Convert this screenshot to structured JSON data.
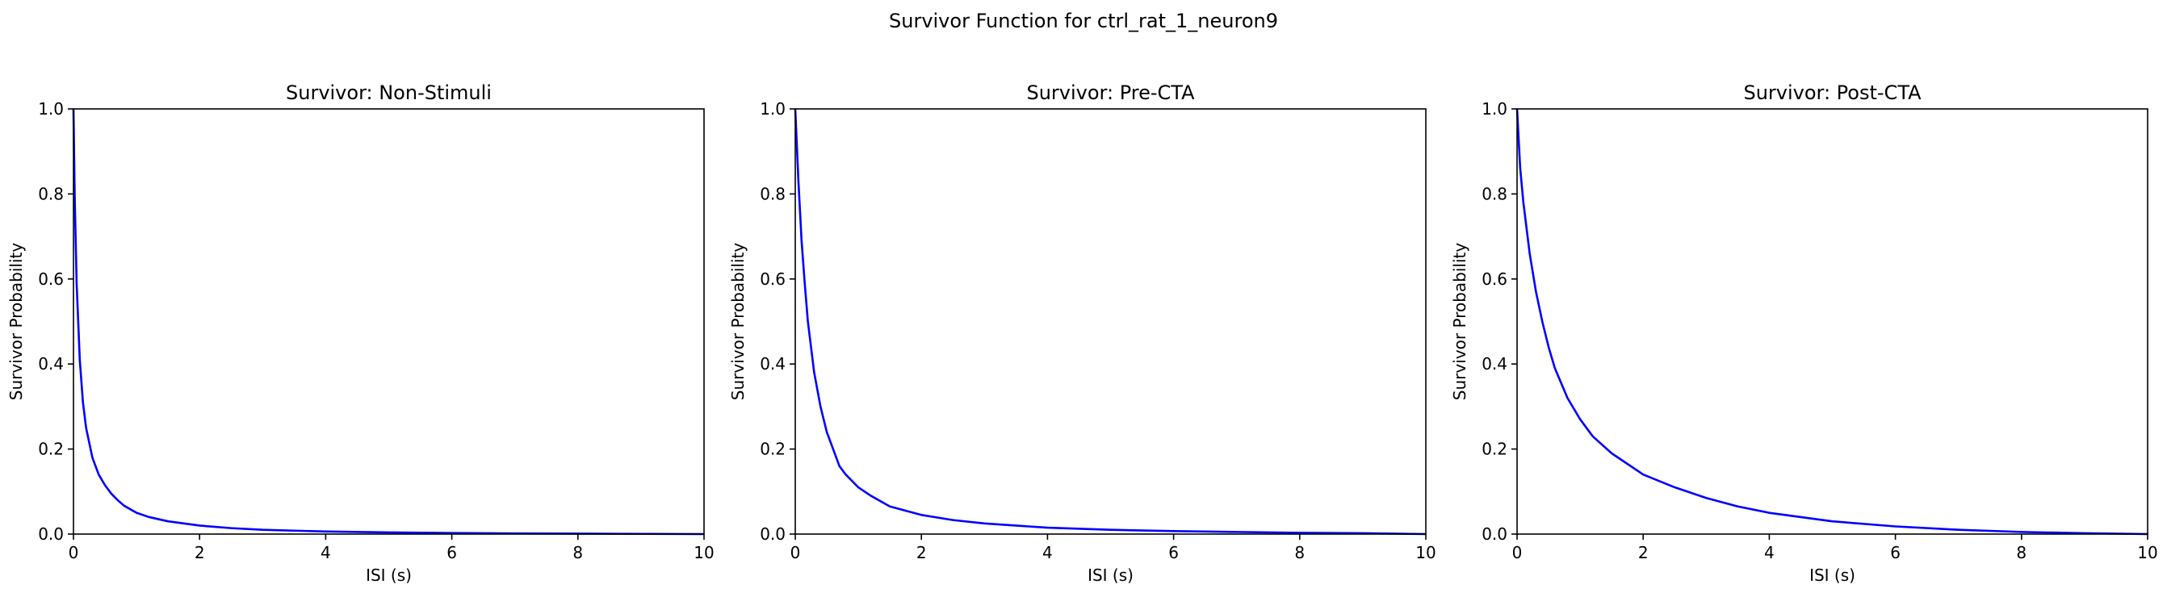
{
  "figure": {
    "suptitle": "Survivor Function for ctrl_rat_1_neuron9"
  },
  "colors": {
    "line": "#0000ff",
    "axes": "#000000",
    "background": "#ffffff"
  },
  "chart_data": [
    {
      "type": "line",
      "title": "Survivor: Non-Stimuli",
      "xlabel": "ISI (s)",
      "ylabel": "Survivor Probability",
      "xlim": [
        0,
        10
      ],
      "ylim": [
        0,
        1
      ],
      "xticks": [
        "0",
        "2",
        "4",
        "6",
        "8",
        "10"
      ],
      "yticks": [
        "0.0",
        "0.2",
        "0.4",
        "0.6",
        "0.8",
        "1.0"
      ],
      "grid": false,
      "series": [
        {
          "color": "#0000ff",
          "x": [
            0,
            0.02,
            0.05,
            0.1,
            0.15,
            0.2,
            0.3,
            0.4,
            0.5,
            0.6,
            0.7,
            0.8,
            1.0,
            1.2,
            1.5,
            2,
            2.5,
            3,
            4,
            5,
            6,
            7,
            8,
            10
          ],
          "y": [
            1.0,
            0.79,
            0.59,
            0.41,
            0.31,
            0.25,
            0.18,
            0.14,
            0.115,
            0.095,
            0.08,
            0.067,
            0.05,
            0.04,
            0.03,
            0.02,
            0.014,
            0.01,
            0.006,
            0.004,
            0.0025,
            0.0015,
            0.001,
            0.0
          ]
        }
      ]
    },
    {
      "type": "line",
      "title": "Survivor: Pre-CTA",
      "xlabel": "ISI (s)",
      "ylabel": "Survivor Probability",
      "xlim": [
        0,
        10
      ],
      "ylim": [
        0,
        1
      ],
      "xticks": [
        "0",
        "2",
        "4",
        "6",
        "8",
        "10"
      ],
      "yticks": [
        "0.0",
        "0.2",
        "0.4",
        "0.6",
        "0.8",
        "1.0"
      ],
      "grid": false,
      "series": [
        {
          "color": "#0000ff",
          "x": [
            0,
            0.05,
            0.1,
            0.15,
            0.2,
            0.3,
            0.4,
            0.5,
            0.6,
            0.7,
            0.8,
            1.0,
            1.2,
            1.5,
            2,
            2.5,
            3,
            4,
            5,
            6,
            7,
            8,
            9,
            10
          ],
          "y": [
            1.0,
            0.83,
            0.69,
            0.59,
            0.5,
            0.38,
            0.3,
            0.24,
            0.2,
            0.16,
            0.14,
            0.11,
            0.09,
            0.065,
            0.045,
            0.033,
            0.025,
            0.015,
            0.01,
            0.007,
            0.005,
            0.003,
            0.002,
            0.0
          ]
        }
      ]
    },
    {
      "type": "line",
      "title": "Survivor: Post-CTA",
      "xlabel": "ISI (s)",
      "ylabel": "Survivor Probability",
      "xlim": [
        0,
        10
      ],
      "ylim": [
        0,
        1
      ],
      "xticks": [
        "0",
        "2",
        "4",
        "6",
        "8",
        "10"
      ],
      "yticks": [
        "0.0",
        "0.2",
        "0.4",
        "0.6",
        "0.8",
        "1.0"
      ],
      "grid": false,
      "series": [
        {
          "color": "#0000ff",
          "x": [
            0,
            0.05,
            0.1,
            0.2,
            0.3,
            0.4,
            0.5,
            0.6,
            0.8,
            1.0,
            1.2,
            1.5,
            2,
            2.5,
            3,
            3.5,
            4,
            5,
            6,
            7,
            8,
            9,
            10
          ],
          "y": [
            1.0,
            0.86,
            0.78,
            0.66,
            0.57,
            0.5,
            0.44,
            0.39,
            0.32,
            0.27,
            0.23,
            0.19,
            0.14,
            0.11,
            0.085,
            0.065,
            0.05,
            0.03,
            0.018,
            0.01,
            0.005,
            0.002,
            0.0
          ]
        }
      ]
    }
  ]
}
